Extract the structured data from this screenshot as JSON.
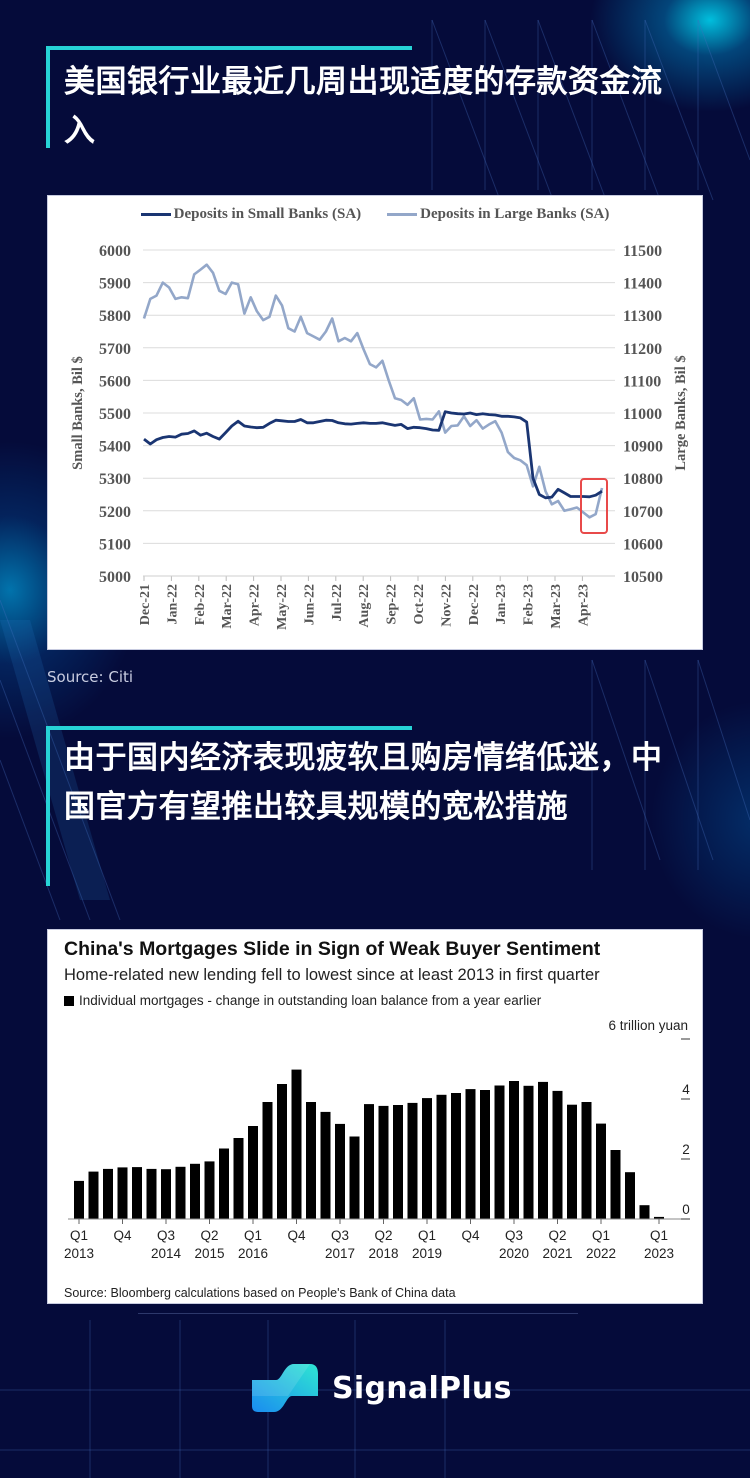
{
  "section1": {
    "title": "美国银行业最近几周出现适度的存款资金流入",
    "source": "Source: Citi"
  },
  "section2": {
    "title": "由于国内经济表现疲软且购房情绪低迷，中国官方有望推出较具规模的宽松措施"
  },
  "brand": {
    "name": "SignalPlus"
  },
  "colors": {
    "background": "#050b3a",
    "accent": "#27d3d6",
    "small_banks": "#1a3572",
    "large_banks": "#93a7c9",
    "highlight_box": "#e84a4a"
  },
  "chart_data": [
    {
      "type": "line",
      "title": "",
      "legend": [
        "Deposits in Small Banks (SA)",
        "Deposits in Large Banks (SA)"
      ],
      "xlabel": "",
      "ylabel": "Small Banks, Bil $",
      "y2label": "Large Banks, Bil $",
      "ylim": [
        5000,
        6000
      ],
      "y2lim": [
        10500,
        11500
      ],
      "yticks": [
        5000,
        5100,
        5200,
        5300,
        5400,
        5500,
        5600,
        5700,
        5800,
        5900,
        6000
      ],
      "y2ticks": [
        10500,
        10600,
        10700,
        10800,
        10900,
        11000,
        11100,
        11200,
        11300,
        11400,
        11500
      ],
      "xticks": [
        "Dec-21",
        "Jan-22",
        "Feb-22",
        "Mar-22",
        "Apr-22",
        "May-22",
        "Jun-22",
        "Jul-22",
        "Aug-22",
        "Sep-22",
        "Oct-22",
        "Nov-22",
        "Dec-22",
        "Jan-23",
        "Feb-23",
        "Mar-23",
        "Apr-23"
      ],
      "frequency": "weekly",
      "grid": true,
      "legend_position": "top",
      "annotation": "red box highlighting the latest weeks (mid-to-late Apr-23)",
      "series": [
        {
          "name": "Deposits in Small Banks (SA)",
          "axis": "left",
          "values": [
            5420,
            5405,
            5418,
            5425,
            5428,
            5426,
            5435,
            5437,
            5445,
            5432,
            5438,
            5428,
            5420,
            5440,
            5460,
            5475,
            5460,
            5457,
            5455,
            5456,
            5468,
            5478,
            5476,
            5474,
            5474,
            5480,
            5470,
            5470,
            5474,
            5478,
            5477,
            5470,
            5467,
            5466,
            5468,
            5470,
            5468,
            5468,
            5470,
            5466,
            5462,
            5465,
            5452,
            5456,
            5455,
            5452,
            5448,
            5447,
            5504,
            5500,
            5498,
            5497,
            5500,
            5495,
            5498,
            5495,
            5494,
            5490,
            5490,
            5488,
            5485,
            5472,
            5300,
            5250,
            5240,
            5242,
            5266,
            5255,
            5244,
            5244,
            5244,
            5243,
            5248,
            5260
          ]
        },
        {
          "name": "Deposits in Large Banks (SA)",
          "axis": "right",
          "values": [
            11290,
            11350,
            11360,
            11400,
            11385,
            11350,
            11355,
            11352,
            11425,
            11440,
            11455,
            11430,
            11375,
            11365,
            11400,
            11395,
            11305,
            11355,
            11312,
            11285,
            11295,
            11360,
            11330,
            11260,
            11250,
            11295,
            11245,
            11235,
            11225,
            11250,
            11290,
            11220,
            11230,
            11220,
            11245,
            11195,
            11150,
            11140,
            11160,
            11100,
            11045,
            11040,
            11025,
            11045,
            10980,
            10982,
            10980,
            11005,
            10940,
            10960,
            10962,
            10990,
            10960,
            10978,
            10952,
            10965,
            10975,
            10940,
            10880,
            10862,
            10855,
            10840,
            10775,
            10835,
            10760,
            10720,
            10730,
            10700,
            10705,
            10710,
            10695,
            10680,
            10690,
            10770
          ]
        }
      ]
    },
    {
      "type": "bar",
      "title": "China's Mortgages Slide in Sign of Weak Buyer Sentiment",
      "subtitle": "Home-related new lending fell to lowest since at least 2013 in first quarter",
      "legend": [
        "Individual mortgages - change in outstanding loan balance from a year earlier"
      ],
      "unit_label": "6 trillion yuan",
      "ylabel": "trillion yuan",
      "ylim": [
        0,
        6
      ],
      "yticks": [
        0,
        2,
        4,
        6
      ],
      "xtick_labels": [
        {
          "q": "Q1",
          "year": "2013",
          "index": 0
        },
        {
          "q": "Q4",
          "year": "",
          "index": 3
        },
        {
          "q": "Q3",
          "year": "2014",
          "index": 6
        },
        {
          "q": "Q2",
          "year": "2015",
          "index": 9
        },
        {
          "q": "Q1",
          "year": "2016",
          "index": 12
        },
        {
          "q": "Q4",
          "year": "",
          "index": 15
        },
        {
          "q": "Q3",
          "year": "2017",
          "index": 18
        },
        {
          "q": "Q2",
          "year": "2018",
          "index": 21
        },
        {
          "q": "Q1",
          "year": "2019",
          "index": 24
        },
        {
          "q": "Q4",
          "year": "",
          "index": 27
        },
        {
          "q": "Q3",
          "year": "2020",
          "index": 30
        },
        {
          "q": "Q2",
          "year": "2021",
          "index": 33
        },
        {
          "q": "Q1",
          "year": "2022",
          "index": 36
        },
        {
          "q": "Q1",
          "year": "2023",
          "index": 40
        }
      ],
      "categories": [
        "2013Q1",
        "2013Q2",
        "2013Q3",
        "2013Q4",
        "2014Q1",
        "2014Q2",
        "2014Q3",
        "2014Q4",
        "2015Q1",
        "2015Q2",
        "2015Q3",
        "2015Q4",
        "2016Q1",
        "2016Q2",
        "2016Q3",
        "2016Q4",
        "2017Q1",
        "2017Q2",
        "2017Q3",
        "2017Q4",
        "2018Q1",
        "2018Q2",
        "2018Q3",
        "2018Q4",
        "2019Q1",
        "2019Q2",
        "2019Q3",
        "2019Q4",
        "2020Q1",
        "2020Q2",
        "2020Q3",
        "2020Q4",
        "2021Q1",
        "2021Q2",
        "2021Q3",
        "2021Q4",
        "2022Q1",
        "2022Q2",
        "2022Q3",
        "2022Q4",
        "2023Q1"
      ],
      "values": [
        1.27,
        1.58,
        1.67,
        1.72,
        1.73,
        1.67,
        1.66,
        1.74,
        1.84,
        1.92,
        2.35,
        2.7,
        3.1,
        3.9,
        4.5,
        4.98,
        3.9,
        3.57,
        3.17,
        2.75,
        3.83,
        3.77,
        3.8,
        3.87,
        4.03,
        4.14,
        4.2,
        4.33,
        4.3,
        4.45,
        4.6,
        4.44,
        4.57,
        4.27,
        3.81,
        3.9,
        3.18,
        2.3,
        1.56,
        0.46,
        0.07
      ],
      "source": "Source: Bloomberg calculations based on People's Bank of China data",
      "grid": false
    }
  ]
}
